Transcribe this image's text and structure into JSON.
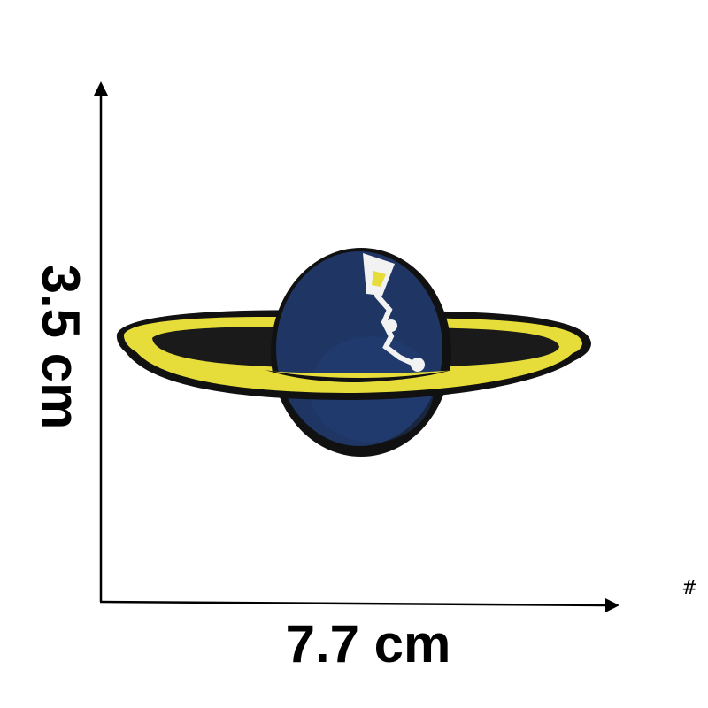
{
  "dimensions": {
    "height_label": "3.5 cm",
    "width_label": "7.7 cm"
  },
  "corner_mark": "#",
  "product": {
    "image": "planet-patch-image"
  },
  "colors": {
    "planet_navy": "#1f3563",
    "ring_yellow": "#e6dc3a",
    "patch_border": "#111111",
    "axis_line": "#000000",
    "constellation_white": "#f2f2f2"
  }
}
